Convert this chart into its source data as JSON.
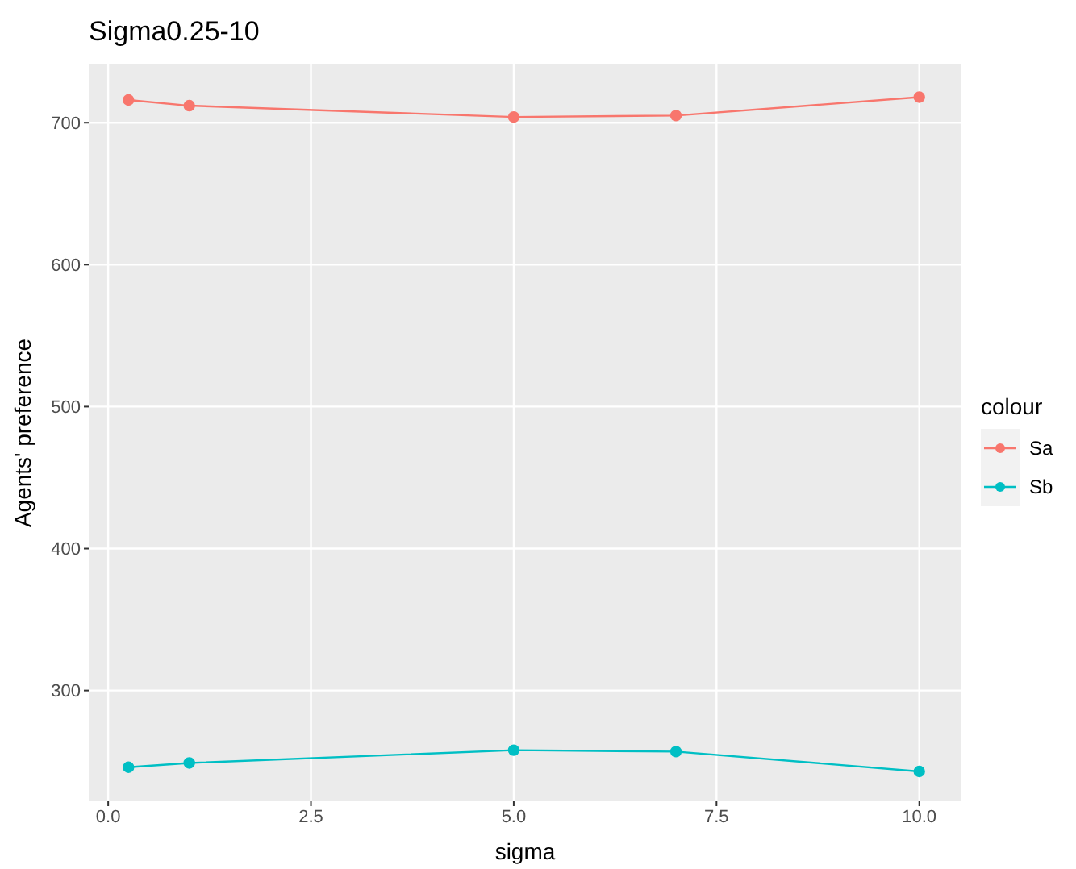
{
  "chart_data": {
    "type": "line",
    "title": "Sigma0.25-10",
    "xlabel": "sigma",
    "ylabel": "Agents' preference",
    "legend_title": "colour",
    "legend": "right",
    "marker": "circle",
    "grid": true,
    "x": [
      0.25,
      1,
      5,
      7,
      10
    ],
    "series": [
      {
        "name": "Sa",
        "color": "#f8766d",
        "values": [
          716,
          712,
          704,
          705,
          718
        ]
      },
      {
        "name": "Sb",
        "color": "#00bfc4",
        "values": [
          246,
          249,
          258,
          257,
          243
        ]
      }
    ],
    "xlim": [
      -0.24,
      10.52
    ],
    "xticks": [
      {
        "value": 0,
        "label": "0.0"
      },
      {
        "value": 2.5,
        "label": "2.5"
      },
      {
        "value": 5,
        "label": "5.0"
      },
      {
        "value": 7.5,
        "label": "7.5"
      },
      {
        "value": 10,
        "label": "10.0"
      }
    ],
    "ylim": [
      222,
      741
    ],
    "yticks": [
      300,
      400,
      500,
      600,
      700
    ]
  }
}
